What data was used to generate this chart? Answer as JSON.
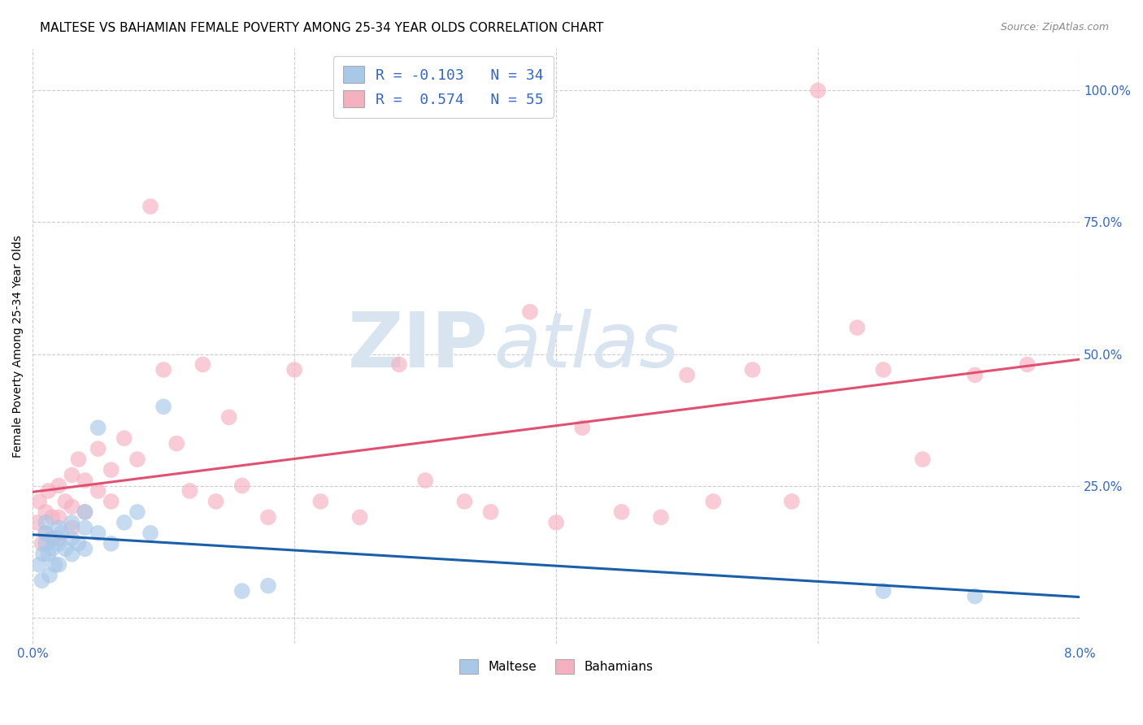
{
  "title": "MALTESE VS BAHAMIAN FEMALE POVERTY AMONG 25-34 YEAR OLDS CORRELATION CHART",
  "source": "Source: ZipAtlas.com",
  "ylabel": "Female Poverty Among 25-34 Year Olds",
  "xlim": [
    0.0,
    0.08
  ],
  "ylim": [
    -0.05,
    1.08
  ],
  "yticks": [
    0.0,
    0.25,
    0.5,
    0.75,
    1.0
  ],
  "ytick_labels": [
    "",
    "25.0%",
    "50.0%",
    "75.0%",
    "100.0%"
  ],
  "xtick_labels": [
    "0.0%",
    "",
    "",
    "",
    "8.0%"
  ],
  "maltese_color": "#a8c8e8",
  "bahamian_color": "#f5b0c0",
  "maltese_line_color": "#1a5fa8",
  "bahamian_line_color": "#e05070",
  "maltese_R": -0.103,
  "maltese_N": 34,
  "bahamian_R": 0.574,
  "bahamian_N": 55,
  "grid_color": "#cccccc",
  "tick_label_color": "#3366cc",
  "watermark_color": "#d8e4f0",
  "maltese_x": [
    0.0005,
    0.0007,
    0.0008,
    0.001,
    0.001,
    0.001,
    0.0012,
    0.0013,
    0.0015,
    0.0015,
    0.0017,
    0.002,
    0.002,
    0.002,
    0.0022,
    0.0025,
    0.003,
    0.003,
    0.003,
    0.0035,
    0.004,
    0.004,
    0.004,
    0.005,
    0.005,
    0.006,
    0.007,
    0.008,
    0.009,
    0.01,
    0.016,
    0.018,
    0.065,
    0.072
  ],
  "maltese_y": [
    0.1,
    0.07,
    0.12,
    0.14,
    0.16,
    0.18,
    0.12,
    0.08,
    0.15,
    0.13,
    0.1,
    0.17,
    0.14,
    0.1,
    0.16,
    0.13,
    0.18,
    0.15,
    0.12,
    0.14,
    0.2,
    0.17,
    0.13,
    0.16,
    0.36,
    0.14,
    0.18,
    0.2,
    0.16,
    0.4,
    0.05,
    0.06,
    0.05,
    0.04
  ],
  "bahamian_x": [
    0.0003,
    0.0005,
    0.0007,
    0.001,
    0.001,
    0.0012,
    0.0015,
    0.0015,
    0.002,
    0.002,
    0.002,
    0.0025,
    0.003,
    0.003,
    0.003,
    0.0035,
    0.004,
    0.004,
    0.005,
    0.005,
    0.006,
    0.006,
    0.007,
    0.008,
    0.009,
    0.01,
    0.011,
    0.012,
    0.013,
    0.014,
    0.015,
    0.016,
    0.018,
    0.02,
    0.022,
    0.025,
    0.028,
    0.03,
    0.033,
    0.035,
    0.038,
    0.04,
    0.042,
    0.045,
    0.048,
    0.05,
    0.052,
    0.055,
    0.058,
    0.06,
    0.063,
    0.065,
    0.068,
    0.072,
    0.076
  ],
  "bahamian_y": [
    0.18,
    0.22,
    0.14,
    0.2,
    0.16,
    0.24,
    0.19,
    0.15,
    0.25,
    0.19,
    0.15,
    0.22,
    0.27,
    0.21,
    0.17,
    0.3,
    0.26,
    0.2,
    0.32,
    0.24,
    0.28,
    0.22,
    0.34,
    0.3,
    0.78,
    0.47,
    0.33,
    0.24,
    0.48,
    0.22,
    0.38,
    0.25,
    0.19,
    0.47,
    0.22,
    0.19,
    0.48,
    0.26,
    0.22,
    0.2,
    0.58,
    0.18,
    0.36,
    0.2,
    0.19,
    0.46,
    0.22,
    0.47,
    0.22,
    1.0,
    0.55,
    0.47,
    0.3,
    0.46,
    0.48
  ]
}
